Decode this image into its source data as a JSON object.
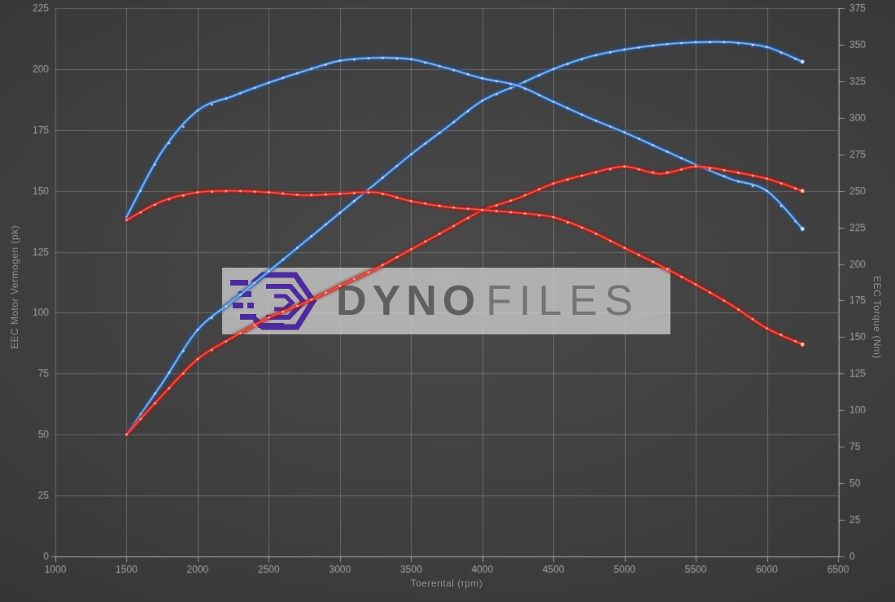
{
  "watermark": {
    "text_bold": "Dyno",
    "text_light": "Files",
    "logo_icon": "dynofiles-hex-logo",
    "box_color": "rgba(203,203,203,0.80)",
    "logo_color": "#4e2a9e",
    "text_bold_color": "#5f5f5f",
    "text_light_color": "#747474"
  },
  "colors": {
    "background_outer": "#242424",
    "background_center": "#4a4a4a",
    "gridline": "rgba(210,210,210,0.30)",
    "axis_line": "rgba(225,225,225,0.55)",
    "tick_text": "#a2a2a2",
    "blue_core": "#9cc3ee",
    "blue_mid": "#3b7ccc",
    "blue_glow": "#1a57a8",
    "blue_dot": "#d7e8fa",
    "red_core": "#ff5a4e",
    "red_mid": "#cf2a24",
    "red_glow": "#9e1b14",
    "red_dot": "#ffc9b8"
  },
  "chart_data": {
    "type": "line",
    "title": "",
    "x_label": "Toerental (rpm)",
    "y_left_label": "EEC Motor Vermogen (pk)",
    "y_right_label": "EEC Torque (Nm)",
    "grid": true,
    "legend_position": "none",
    "x_range": [
      1000,
      6500
    ],
    "y_left_range": [
      0,
      225
    ],
    "y_right_range": [
      0,
      375
    ],
    "x_ticks": [
      1000,
      1500,
      2000,
      2500,
      3000,
      3500,
      4000,
      4500,
      5000,
      5500,
      6000,
      6500
    ],
    "y_left_ticks": [
      0,
      25,
      50,
      75,
      100,
      125,
      150,
      175,
      200,
      225
    ],
    "y_right_ticks": [
      0,
      25,
      50,
      75,
      100,
      125,
      150,
      175,
      200,
      225,
      250,
      275,
      300,
      325,
      350,
      375
    ],
    "rpm": [
      1500,
      1750,
      2000,
      2250,
      2500,
      2750,
      3000,
      3250,
      3500,
      3750,
      4000,
      4250,
      4500,
      4750,
      5000,
      5250,
      5500,
      5750,
      6000,
      6250
    ],
    "series": [
      {
        "name": "blue-power",
        "color_key": "blue",
        "axis": "left",
        "unit": "pk",
        "values": [
          50,
          71,
          93,
          105,
          117,
          129,
          141,
          153,
          165,
          176,
          187,
          193.5,
          200,
          205,
          208,
          210,
          211,
          211,
          209,
          203
        ]
      },
      {
        "name": "blue-torque",
        "color_key": "blue",
        "axis": "right",
        "unit": "Nm",
        "values": [
          232,
          277,
          305,
          315,
          324,
          332,
          339,
          341,
          340,
          334,
          327,
          322,
          311,
          300,
          290,
          279,
          268,
          258,
          250,
          224
        ]
      },
      {
        "name": "red-power",
        "color_key": "red",
        "axis": "left",
        "unit": "pk",
        "values": [
          50,
          66,
          81,
          90,
          98,
          104,
          111,
          118,
          126,
          134,
          142,
          147,
          153,
          157,
          160,
          157,
          160,
          158,
          155,
          150
        ]
      },
      {
        "name": "red-torque",
        "color_key": "red",
        "axis": "right",
        "unit": "Nm",
        "values": [
          230,
          243,
          249,
          250,
          249,
          247,
          248,
          249,
          243,
          239,
          237,
          235,
          232,
          223,
          211,
          199,
          186,
          172,
          156,
          145
        ]
      }
    ]
  }
}
